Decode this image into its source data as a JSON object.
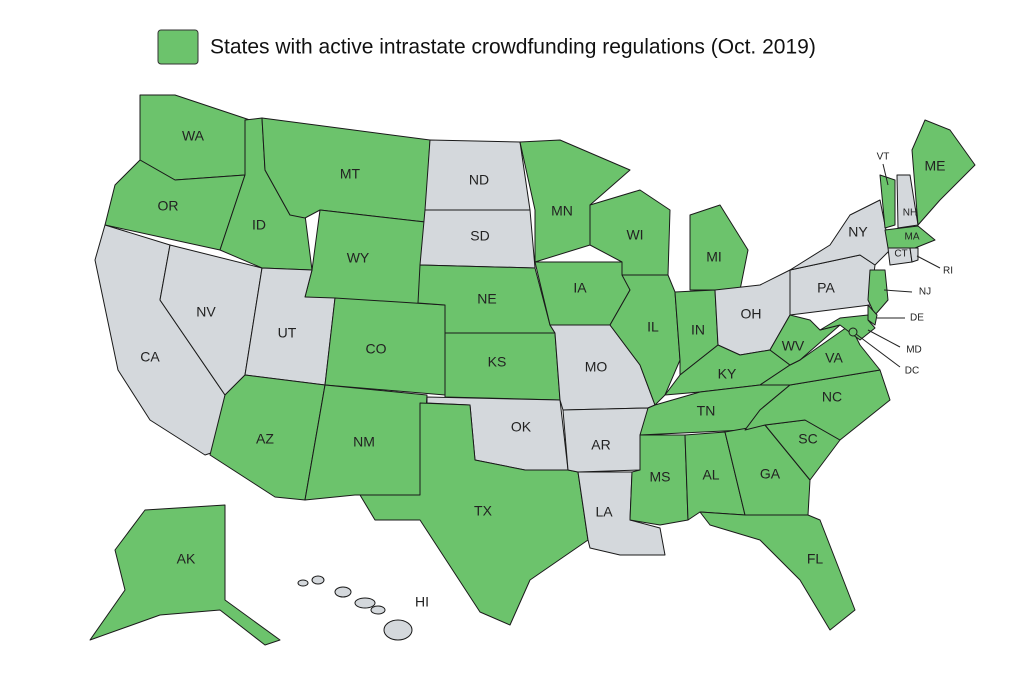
{
  "legend": {
    "label": "States with active intrastate crowdfunding regulations (Oct. 2019)",
    "color": "#6cc36c"
  },
  "inactive_color": "#d4d8dc",
  "states": [
    {
      "abbr": "WA",
      "active": true
    },
    {
      "abbr": "OR",
      "active": true
    },
    {
      "abbr": "CA",
      "active": false
    },
    {
      "abbr": "NV",
      "active": false
    },
    {
      "abbr": "ID",
      "active": true
    },
    {
      "abbr": "MT",
      "active": true
    },
    {
      "abbr": "WY",
      "active": true
    },
    {
      "abbr": "UT",
      "active": false
    },
    {
      "abbr": "CO",
      "active": true
    },
    {
      "abbr": "AZ",
      "active": true
    },
    {
      "abbr": "NM",
      "active": true
    },
    {
      "abbr": "ND",
      "active": false
    },
    {
      "abbr": "SD",
      "active": false
    },
    {
      "abbr": "NE",
      "active": true
    },
    {
      "abbr": "KS",
      "active": true
    },
    {
      "abbr": "OK",
      "active": false
    },
    {
      "abbr": "TX",
      "active": true
    },
    {
      "abbr": "MN",
      "active": true
    },
    {
      "abbr": "IA",
      "active": true
    },
    {
      "abbr": "MO",
      "active": false
    },
    {
      "abbr": "AR",
      "active": false
    },
    {
      "abbr": "LA",
      "active": false
    },
    {
      "abbr": "WI",
      "active": true
    },
    {
      "abbr": "IL",
      "active": true
    },
    {
      "abbr": "MI",
      "active": true
    },
    {
      "abbr": "IN",
      "active": true
    },
    {
      "abbr": "OH",
      "active": false
    },
    {
      "abbr": "KY",
      "active": true
    },
    {
      "abbr": "TN",
      "active": true
    },
    {
      "abbr": "MS",
      "active": true
    },
    {
      "abbr": "AL",
      "active": true
    },
    {
      "abbr": "GA",
      "active": true
    },
    {
      "abbr": "FL",
      "active": true
    },
    {
      "abbr": "SC",
      "active": true
    },
    {
      "abbr": "NC",
      "active": true
    },
    {
      "abbr": "VA",
      "active": true
    },
    {
      "abbr": "WV",
      "active": true
    },
    {
      "abbr": "PA",
      "active": false
    },
    {
      "abbr": "NY",
      "active": false
    },
    {
      "abbr": "NJ",
      "active": true
    },
    {
      "abbr": "DE",
      "active": true
    },
    {
      "abbr": "MD",
      "active": true
    },
    {
      "abbr": "DC",
      "active": true
    },
    {
      "abbr": "VT",
      "active": true
    },
    {
      "abbr": "NH",
      "active": false
    },
    {
      "abbr": "ME",
      "active": true
    },
    {
      "abbr": "MA",
      "active": true
    },
    {
      "abbr": "CT",
      "active": false
    },
    {
      "abbr": "RI",
      "active": false
    },
    {
      "abbr": "AK",
      "active": true
    },
    {
      "abbr": "HI",
      "active": false
    }
  ]
}
